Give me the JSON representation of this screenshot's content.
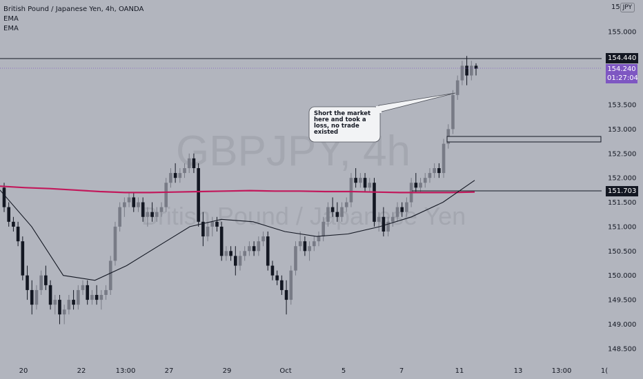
{
  "legend": {
    "title": "British Pound / Japanese Yen, 4h, OANDA",
    "indicators": [
      "EMA",
      "EMA"
    ]
  },
  "currency_button": "JPY",
  "watermark": {
    "symbol": "GBPJPY, 4h",
    "name": "British Pound / Japanese Yen"
  },
  "price_axis": {
    "ticks": [
      "155.000",
      "154.500",
      "154.000",
      "153.500",
      "153.000",
      "152.500",
      "152.000",
      "151.500",
      "151.000",
      "150.500",
      "150.000",
      "149.500",
      "149.000",
      "148.500"
    ],
    "top_partial": "15"
  },
  "time_axis": {
    "ticks": [
      "20",
      "22",
      "13:00",
      "27",
      "29",
      "Oct",
      "5",
      "7",
      "11",
      "13",
      "13:00",
      "1("
    ]
  },
  "price_labels": {
    "high_line": "154.440",
    "current_price": "154.240",
    "countdown": "01:27:04",
    "support_line": "151.703"
  },
  "annotation": {
    "text": [
      "Short the market",
      "here and took a",
      "loss, no trade",
      "existed"
    ]
  },
  "colors": {
    "background": "#b2b5be",
    "bull": "#787b86",
    "bear": "#131722",
    "ema_slow": "#c2185b",
    "ema_fast": "#131722",
    "current_badge": "#7e57c2"
  },
  "chart_data": {
    "type": "candlestick",
    "timeframe": "4h",
    "ylim": [
      148.3,
      155.45
    ],
    "candles": [
      [
        151.8,
        151.9,
        151.3,
        151.4
      ],
      [
        151.4,
        151.5,
        151.0,
        151.1
      ],
      [
        151.1,
        151.2,
        150.9,
        151.0
      ],
      [
        151.0,
        151.1,
        150.6,
        150.7
      ],
      [
        150.7,
        150.8,
        149.9,
        150.0
      ],
      [
        150.0,
        150.2,
        149.5,
        149.7
      ],
      [
        149.7,
        149.9,
        149.2,
        149.4
      ],
      [
        149.4,
        149.8,
        149.3,
        149.7
      ],
      [
        149.7,
        150.1,
        149.6,
        150.0
      ],
      [
        150.0,
        150.2,
        149.7,
        149.8
      ],
      [
        149.8,
        149.9,
        149.3,
        149.4
      ],
      [
        149.4,
        149.6,
        149.2,
        149.5
      ],
      [
        149.5,
        149.6,
        149.0,
        149.2
      ],
      [
        149.2,
        149.4,
        149.0,
        149.3
      ],
      [
        149.3,
        149.6,
        149.2,
        149.5
      ],
      [
        149.5,
        149.7,
        149.3,
        149.4
      ],
      [
        149.4,
        149.8,
        149.3,
        149.7
      ],
      [
        149.7,
        149.9,
        149.6,
        149.8
      ],
      [
        149.8,
        149.9,
        149.4,
        149.5
      ],
      [
        149.5,
        149.7,
        149.4,
        149.6
      ],
      [
        149.6,
        149.8,
        149.4,
        149.5
      ],
      [
        149.5,
        149.7,
        149.3,
        149.6
      ],
      [
        149.6,
        149.8,
        149.5,
        149.7
      ],
      [
        149.7,
        150.4,
        149.6,
        150.3
      ],
      [
        150.3,
        151.1,
        150.2,
        151.0
      ],
      [
        151.0,
        151.5,
        150.9,
        151.4
      ],
      [
        151.4,
        151.6,
        151.2,
        151.5
      ],
      [
        151.5,
        151.7,
        151.4,
        151.6
      ],
      [
        151.6,
        151.7,
        151.3,
        151.4
      ],
      [
        151.4,
        151.6,
        151.3,
        151.5
      ],
      [
        151.5,
        151.6,
        151.1,
        151.2
      ],
      [
        151.2,
        151.4,
        151.0,
        151.3
      ],
      [
        151.3,
        151.5,
        151.1,
        151.2
      ],
      [
        151.2,
        151.4,
        151.1,
        151.3
      ],
      [
        151.3,
        151.5,
        151.2,
        151.4
      ],
      [
        151.4,
        152.0,
        151.3,
        151.9
      ],
      [
        151.9,
        152.2,
        151.8,
        152.1
      ],
      [
        152.1,
        152.3,
        151.9,
        152.0
      ],
      [
        152.0,
        152.2,
        151.9,
        152.1
      ],
      [
        152.1,
        152.3,
        152.0,
        152.2
      ],
      [
        152.2,
        152.5,
        152.1,
        152.4
      ],
      [
        152.4,
        152.5,
        152.1,
        152.2
      ],
      [
        152.2,
        152.3,
        151.0,
        151.1
      ],
      [
        151.1,
        151.3,
        150.6,
        150.8
      ],
      [
        150.8,
        151.1,
        150.7,
        151.0
      ],
      [
        151.0,
        151.2,
        150.8,
        151.1
      ],
      [
        151.1,
        151.2,
        150.9,
        151.0
      ],
      [
        151.0,
        151.1,
        150.3,
        150.4
      ],
      [
        150.4,
        150.6,
        150.3,
        150.5
      ],
      [
        150.5,
        150.6,
        150.3,
        150.4
      ],
      [
        150.4,
        150.6,
        150.0,
        150.2
      ],
      [
        150.2,
        150.5,
        150.1,
        150.4
      ],
      [
        150.4,
        150.6,
        150.3,
        150.5
      ],
      [
        150.5,
        150.7,
        150.4,
        150.6
      ],
      [
        150.6,
        150.7,
        150.4,
        150.5
      ],
      [
        150.5,
        150.8,
        150.4,
        150.7
      ],
      [
        150.7,
        150.9,
        150.6,
        150.8
      ],
      [
        150.8,
        150.9,
        150.1,
        150.2
      ],
      [
        150.2,
        150.3,
        149.9,
        150.0
      ],
      [
        150.0,
        150.1,
        149.8,
        149.9
      ],
      [
        149.9,
        150.0,
        149.6,
        149.7
      ],
      [
        149.7,
        149.9,
        149.2,
        149.5
      ],
      [
        149.5,
        150.2,
        149.4,
        150.1
      ],
      [
        150.1,
        150.7,
        150.0,
        150.6
      ],
      [
        150.6,
        150.9,
        150.5,
        150.7
      ],
      [
        150.7,
        150.8,
        150.4,
        150.5
      ],
      [
        150.5,
        150.7,
        150.3,
        150.6
      ],
      [
        150.6,
        150.8,
        150.5,
        150.7
      ],
      [
        150.7,
        150.9,
        150.6,
        150.8
      ],
      [
        150.8,
        151.2,
        150.7,
        151.1
      ],
      [
        151.1,
        151.5,
        151.0,
        151.4
      ],
      [
        151.4,
        151.6,
        151.2,
        151.3
      ],
      [
        151.3,
        151.5,
        151.1,
        151.2
      ],
      [
        151.2,
        151.5,
        151.1,
        151.4
      ],
      [
        151.4,
        151.6,
        151.3,
        151.5
      ],
      [
        151.5,
        152.1,
        151.4,
        152.0
      ],
      [
        152.0,
        152.2,
        151.8,
        151.9
      ],
      [
        151.9,
        152.1,
        151.8,
        152.0
      ],
      [
        152.0,
        152.1,
        151.7,
        151.8
      ],
      [
        151.8,
        152.0,
        151.7,
        151.9
      ],
      [
        151.9,
        152.0,
        151.0,
        151.1
      ],
      [
        151.1,
        151.3,
        150.9,
        151.2
      ],
      [
        151.2,
        151.4,
        150.8,
        150.9
      ],
      [
        150.9,
        151.2,
        150.8,
        151.1
      ],
      [
        151.1,
        151.3,
        151.0,
        151.2
      ],
      [
        151.2,
        151.5,
        151.1,
        151.4
      ],
      [
        151.4,
        151.5,
        151.2,
        151.3
      ],
      [
        151.3,
        151.6,
        151.2,
        151.5
      ],
      [
        151.5,
        152.0,
        151.4,
        151.9
      ],
      [
        151.9,
        152.1,
        151.7,
        151.8
      ],
      [
        151.8,
        152.0,
        151.7,
        151.9
      ],
      [
        151.9,
        152.1,
        151.8,
        152.0
      ],
      [
        152.0,
        152.2,
        151.9,
        152.1
      ],
      [
        152.1,
        152.3,
        152.0,
        152.2
      ],
      [
        152.2,
        152.3,
        152.0,
        152.1
      ],
      [
        152.1,
        152.8,
        152.0,
        152.7
      ],
      [
        152.7,
        153.1,
        152.6,
        153.0
      ],
      [
        153.0,
        153.8,
        152.9,
        153.7
      ],
      [
        153.7,
        154.1,
        153.6,
        154.0
      ],
      [
        154.0,
        154.4,
        153.9,
        154.3
      ],
      [
        154.3,
        154.5,
        153.9,
        154.1
      ],
      [
        154.1,
        154.4,
        154.0,
        154.3
      ],
      [
        154.3,
        154.35,
        154.1,
        154.24
      ]
    ],
    "ema_slow": [
      151.83,
      151.8,
      151.78,
      151.75,
      151.72,
      151.7,
      151.7,
      151.71,
      151.72,
      151.73,
      151.74,
      151.73,
      151.73,
      151.72,
      151.72,
      151.71,
      151.7,
      151.7,
      151.7,
      151.71
    ],
    "ema_fast": [
      151.75,
      151.0,
      150.0,
      149.9,
      150.2,
      150.6,
      151.0,
      151.15,
      151.1,
      150.9,
      150.8,
      150.85,
      151.0,
      151.2,
      151.5,
      151.95
    ],
    "horizontal_lines": [
      154.44,
      151.703
    ],
    "zone": {
      "top": 152.79,
      "bottom": 152.69
    }
  }
}
